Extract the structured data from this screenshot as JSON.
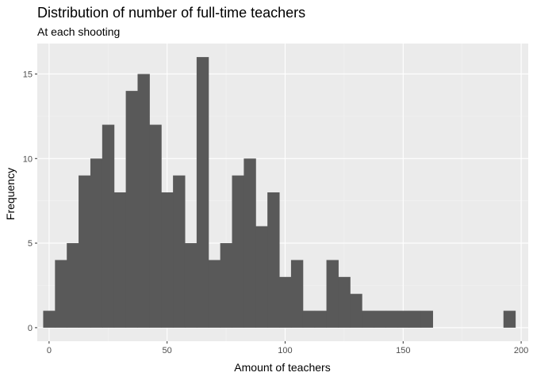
{
  "chart_data": {
    "type": "bar",
    "title": "Distribution of number of full-time teachers",
    "subtitle": "At each shooting",
    "xlabel": "Amount of teachers",
    "ylabel": "Frequency",
    "xlim": [
      -5,
      203
    ],
    "ylim": [
      -0.8,
      16.8
    ],
    "x_ticks": [
      0,
      50,
      100,
      150,
      200
    ],
    "x_tick_labels": [
      "0",
      "50",
      "100",
      "150",
      "200"
    ],
    "y_ticks": [
      0,
      5,
      10,
      15
    ],
    "y_tick_labels": [
      "0",
      "5",
      "10",
      "15"
    ],
    "bin_width": 5,
    "bin_start": -2.5,
    "values": [
      1,
      4,
      5,
      9,
      10,
      12,
      8,
      14,
      15,
      12,
      8,
      9,
      5,
      16,
      4,
      5,
      9,
      10,
      6,
      8,
      3,
      4,
      1,
      1,
      4,
      3,
      2,
      1,
      1,
      1,
      1,
      1,
      1,
      0,
      0,
      0,
      0,
      0,
      0,
      1
    ],
    "grid": true,
    "legend": "none",
    "colors": {
      "bar": "#595959",
      "panel_background": "#ebebeb",
      "grid_major": "#ffffff",
      "grid_minor": "#f3f3f3",
      "tick": "#333333"
    }
  }
}
